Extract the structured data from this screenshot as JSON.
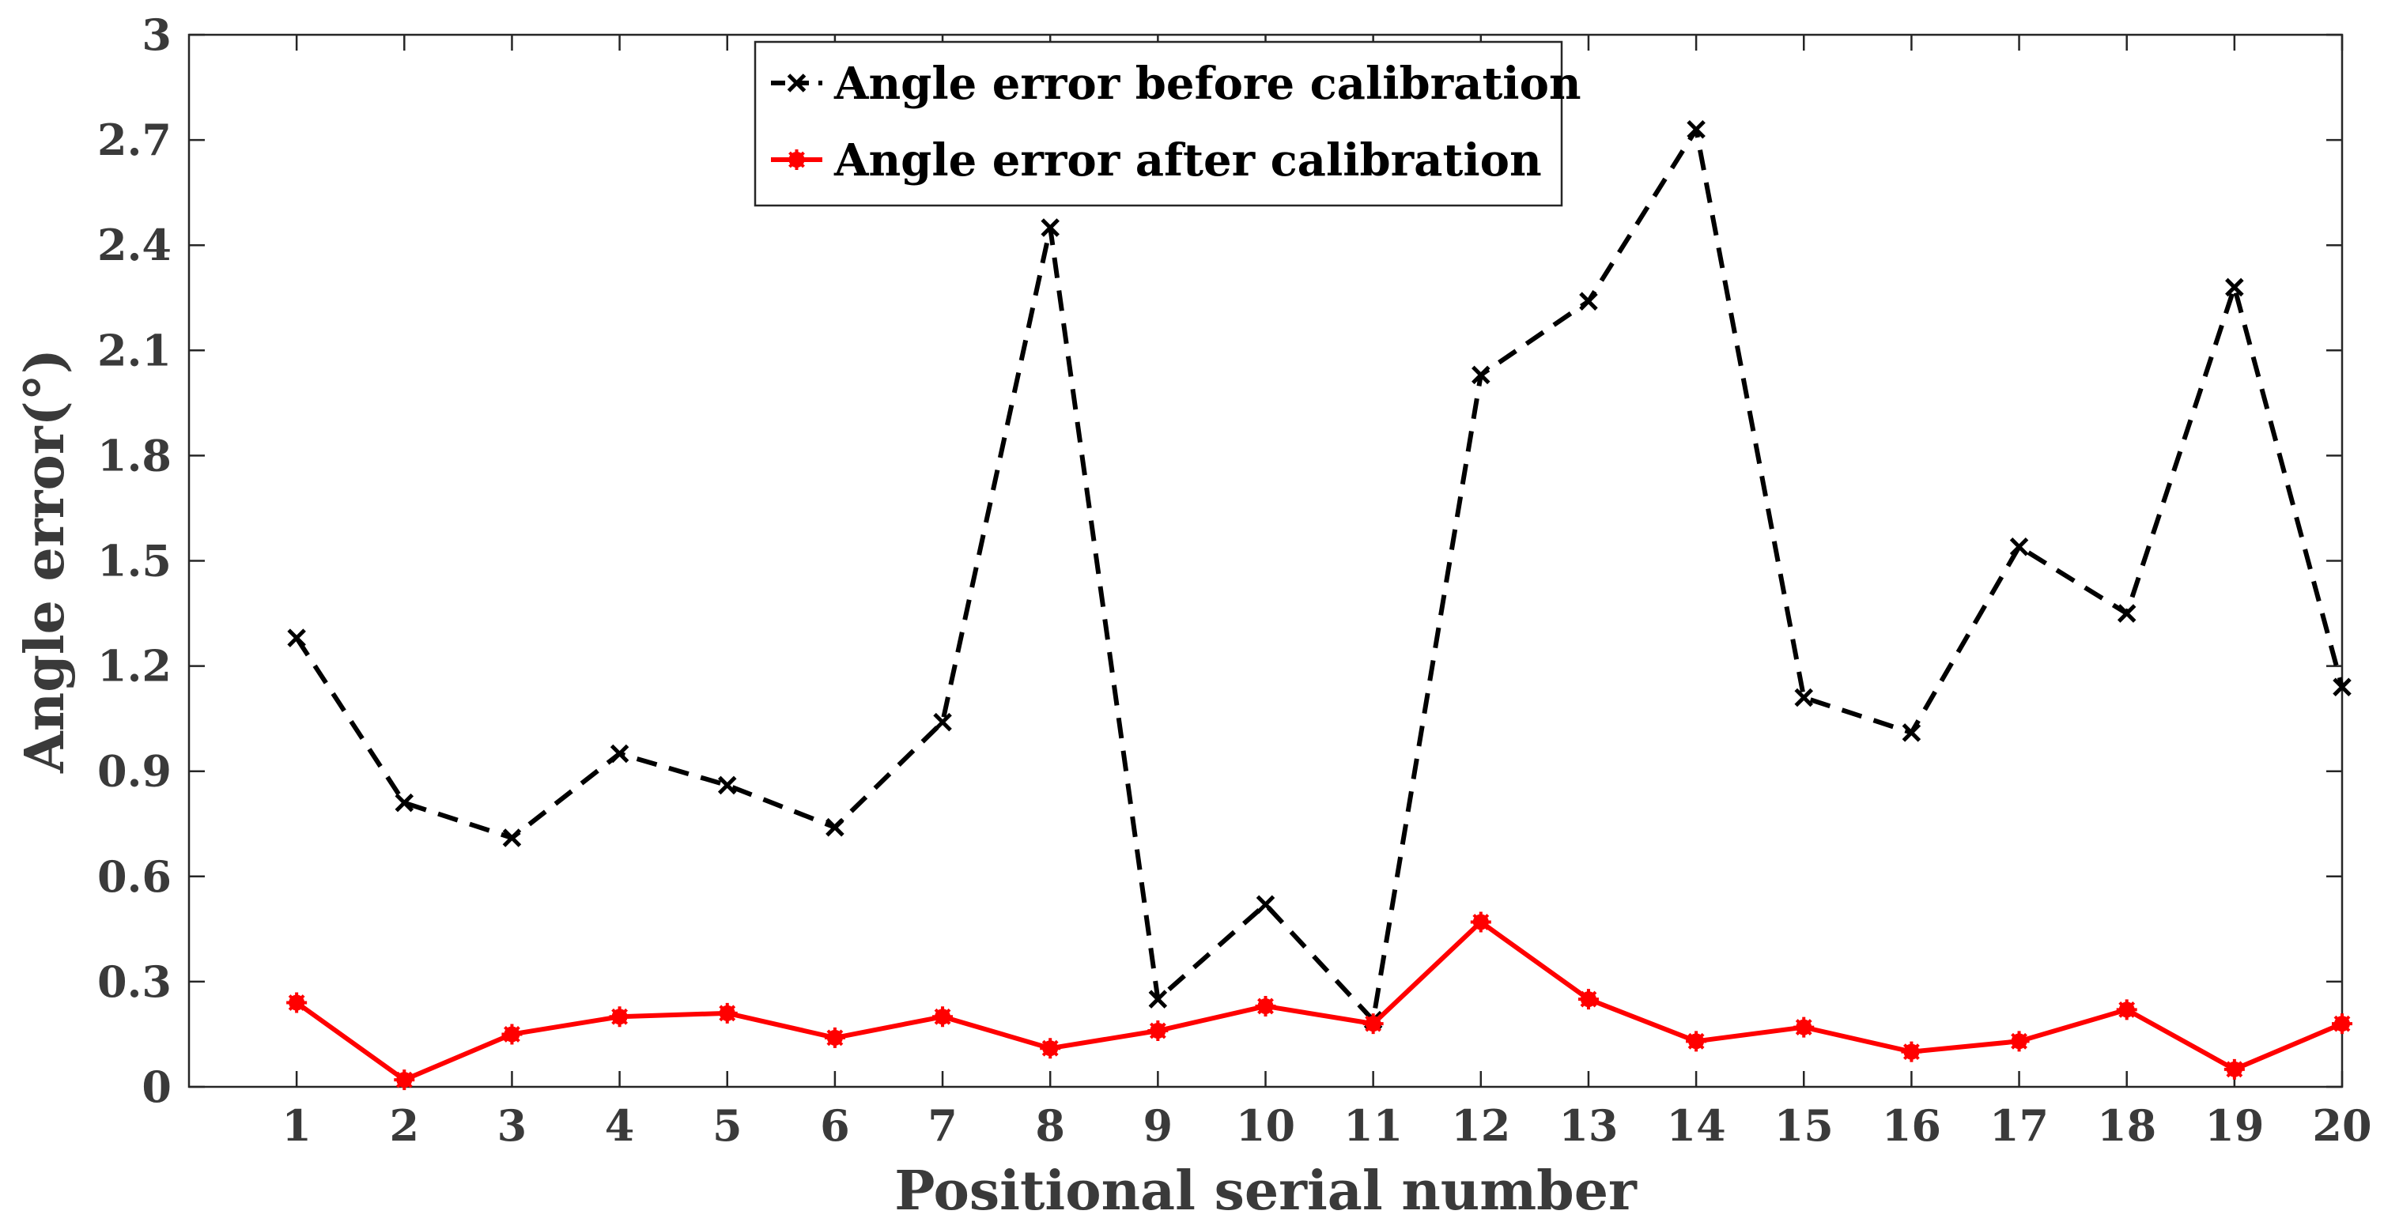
{
  "chart_data": {
    "type": "line",
    "title": "",
    "xlabel": "Positional serial number",
    "ylabel": "Angle error(°)",
    "x": [
      1,
      2,
      3,
      4,
      5,
      6,
      7,
      8,
      9,
      10,
      11,
      12,
      13,
      14,
      15,
      16,
      17,
      18,
      19,
      20
    ],
    "xlim": [
      0,
      20
    ],
    "ylim": [
      0,
      3
    ],
    "yticks": [
      0,
      0.3,
      0.6,
      0.9,
      1.2,
      1.5,
      1.8,
      2.1,
      2.4,
      2.7,
      3
    ],
    "ytick_labels": [
      "0",
      "0.3",
      "0.6",
      "0.9",
      "1.2",
      "1.5",
      "1.8",
      "2.1",
      "2.4",
      "2.7",
      "3"
    ],
    "xtick_labels": [
      "1",
      "2",
      "3",
      "4",
      "5",
      "6",
      "7",
      "8",
      "9",
      "10",
      "11",
      "12",
      "13",
      "14",
      "15",
      "16",
      "17",
      "18",
      "19",
      "20"
    ],
    "grid": false,
    "legend_position": "top-center",
    "series": [
      {
        "name": "Angle error before calibration",
        "color": "#000000",
        "line_style": "dashed",
        "marker": "x",
        "values": [
          1.28,
          0.81,
          0.71,
          0.95,
          0.86,
          0.74,
          1.04,
          2.45,
          0.25,
          0.52,
          0.19,
          2.03,
          2.24,
          2.73,
          1.11,
          1.01,
          1.54,
          1.35,
          2.28,
          1.14
        ]
      },
      {
        "name": "Angle error after calibration",
        "color": "#ff0000",
        "line_style": "solid",
        "marker": "star",
        "values": [
          0.24,
          0.02,
          0.15,
          0.2,
          0.21,
          0.14,
          0.2,
          0.11,
          0.16,
          0.23,
          0.18,
          0.47,
          0.25,
          0.13,
          0.17,
          0.1,
          0.13,
          0.22,
          0.05,
          0.18
        ]
      }
    ]
  }
}
